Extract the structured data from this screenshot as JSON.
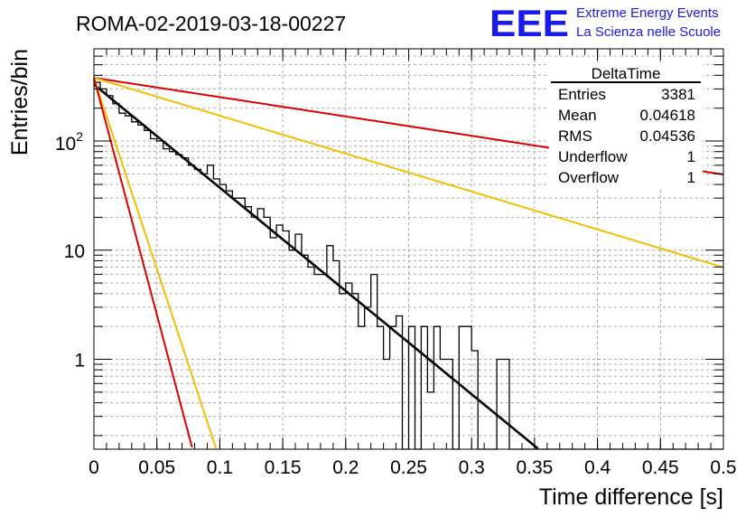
{
  "chart_data": {
    "type": "histogram",
    "title": "ROMA-02-2019-03-18-00227",
    "xlabel": "Time difference [s]",
    "ylabel": "Entries/bin",
    "xlim": [
      0,
      0.5
    ],
    "ylim": [
      0.15,
      700
    ],
    "yscale": "log",
    "grid": true,
    "x_ticks": [
      {
        "v": 0,
        "label": "0"
      },
      {
        "v": 0.05,
        "label": "0.05"
      },
      {
        "v": 0.1,
        "label": "0.1"
      },
      {
        "v": 0.15,
        "label": "0.15"
      },
      {
        "v": 0.2,
        "label": "0.2"
      },
      {
        "v": 0.25,
        "label": "0.25"
      },
      {
        "v": 0.3,
        "label": "0.3"
      },
      {
        "v": 0.35,
        "label": "0.35"
      },
      {
        "v": 0.4,
        "label": "0.4"
      },
      {
        "v": 0.45,
        "label": "0.45"
      },
      {
        "v": 0.5,
        "label": "0.5"
      }
    ],
    "y_ticks": [
      {
        "v": 1,
        "label": "1"
      },
      {
        "v": 10,
        "label": "10"
      },
      {
        "v": 100,
        "base": "10",
        "exp": "2"
      }
    ],
    "bin_width": 0.005,
    "histogram_values": [
      345,
      300,
      260,
      220,
      180,
      170,
      150,
      140,
      125,
      105,
      100,
      85,
      80,
      75,
      70,
      60,
      55,
      50,
      60,
      45,
      40,
      35,
      30,
      30,
      25,
      20,
      24,
      20,
      13,
      17,
      15,
      10,
      14,
      9,
      7,
      6,
      6,
      11,
      8,
      4,
      5,
      4,
      2,
      3,
      6,
      2,
      1,
      2,
      2.5,
      0,
      2,
      0,
      2,
      0.5,
      2,
      1,
      1,
      0,
      2,
      2,
      1.2,
      0,
      0,
      0,
      1,
      1,
      0,
      0,
      0,
      0,
      0,
      0,
      0,
      0,
      0,
      0,
      0,
      0,
      0,
      0,
      0,
      0,
      0,
      0,
      0,
      0,
      0,
      0,
      0,
      0,
      0,
      0,
      0,
      0,
      0,
      0,
      0,
      0,
      0,
      0
    ],
    "fits": [
      {
        "name": "fit-main",
        "color": "#000000",
        "a0": 330,
        "tau": 0.0459,
        "xmax": 0.355
      },
      {
        "name": "red-slow",
        "color": "#dd0000",
        "a0": 380,
        "tau": 0.245,
        "xmax": 0.5
      },
      {
        "name": "yellow-slow",
        "color": "#f0c000",
        "a0": 380,
        "tau": 0.125,
        "xmax": 0.5
      },
      {
        "name": "yellow-fast",
        "color": "#f0c000",
        "a0": 380,
        "tau": 0.0124,
        "xmax": 0.1
      },
      {
        "name": "red-fast",
        "color": "#dd0000",
        "a0": 380,
        "tau": 0.01,
        "xmax": 0.078
      }
    ],
    "stats": {
      "title": "DeltaTime",
      "rows": [
        {
          "label": "Entries",
          "value": "3381"
        },
        {
          "label": "Mean",
          "value": "0.04618"
        },
        {
          "label": "RMS",
          "value": "0.04536"
        },
        {
          "label": "Underflow",
          "value": "1"
        },
        {
          "label": "Overflow",
          "value": "1"
        }
      ]
    },
    "logo": {
      "text": "EEE",
      "line1": "Extreme Energy Events",
      "line2": "La Scienza nelle Scuole",
      "color": "#1a1aee"
    }
  }
}
